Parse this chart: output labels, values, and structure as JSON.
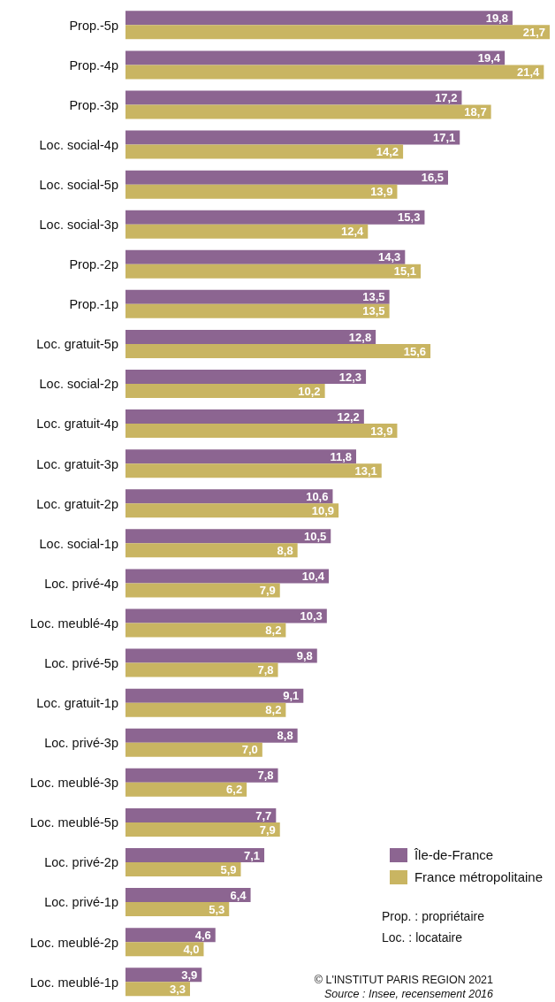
{
  "chart_data": {
    "type": "bar",
    "orientation": "horizontal",
    "categories": [
      "Prop.-5p",
      "Prop.-4p",
      "Prop.-3p",
      "Loc. social-4p",
      "Loc. social-5p",
      "Loc. social-3p",
      "Prop.-2p",
      "Prop.-1p",
      "Loc. gratuit-5p",
      "Loc. social-2p",
      "Loc. gratuit-4p",
      "Loc. gratuit-3p",
      "Loc. gratuit-2p",
      "Loc. social-1p",
      "Loc. privé-4p",
      "Loc. meublé-4p",
      "Loc. privé-5p",
      "Loc. gratuit-1p",
      "Loc. privé-3p",
      "Loc. meublé-3p",
      "Loc. meublé-5p",
      "Loc. privé-2p",
      "Loc. privé-1p",
      "Loc. meublé-2p",
      "Loc. meublé-1p"
    ],
    "series": [
      {
        "name": "Île-de-France",
        "color": "#8c6591",
        "values": [
          19.8,
          19.4,
          17.2,
          17.1,
          16.5,
          15.3,
          14.3,
          13.5,
          12.8,
          12.3,
          12.2,
          11.8,
          10.6,
          10.5,
          10.4,
          10.3,
          9.8,
          9.1,
          8.8,
          7.8,
          7.7,
          7.1,
          6.4,
          4.6,
          3.9
        ],
        "value_labels": [
          "19,8",
          "19,4",
          "17,2",
          "17,1",
          "16,5",
          "15,3",
          "14,3",
          "13,5",
          "12,8",
          "12,3",
          "12,2",
          "11,8",
          "10,6",
          "10,5",
          "10,4",
          "10,3",
          "9,8",
          "9,1",
          "8,8",
          "7,8",
          "7,7",
          "7,1",
          "6,4",
          "4,6",
          "3,9"
        ]
      },
      {
        "name": "France métropolitaine",
        "color": "#c9b562",
        "values": [
          21.7,
          21.4,
          18.7,
          14.2,
          13.9,
          12.4,
          15.1,
          13.5,
          15.6,
          10.2,
          13.9,
          13.1,
          10.9,
          8.8,
          7.9,
          8.2,
          7.8,
          8.2,
          7.0,
          6.2,
          7.9,
          5.9,
          5.3,
          4.0,
          3.3
        ],
        "value_labels": [
          "21,7",
          "21,4",
          "18,7",
          "14,2",
          "13,9",
          "12,4",
          "15,1",
          "13,5",
          "15,6",
          "10,2",
          "13,9",
          "13,1",
          "10,9",
          "8,8",
          "7,9",
          "8,2",
          "7,8",
          "8,2",
          "7,0",
          "6,2",
          "7,9",
          "5,9",
          "5,3",
          "4,0",
          "3,3"
        ]
      }
    ],
    "legend": "bottom right",
    "tick_labels": "y",
    "annotations": [
      "Prop. : propriétaire",
      "Loc. : locataire",
      "© L'INSTITUT PARIS REGION 2021",
      "Source : Insee, recensement 2016"
    ]
  }
}
